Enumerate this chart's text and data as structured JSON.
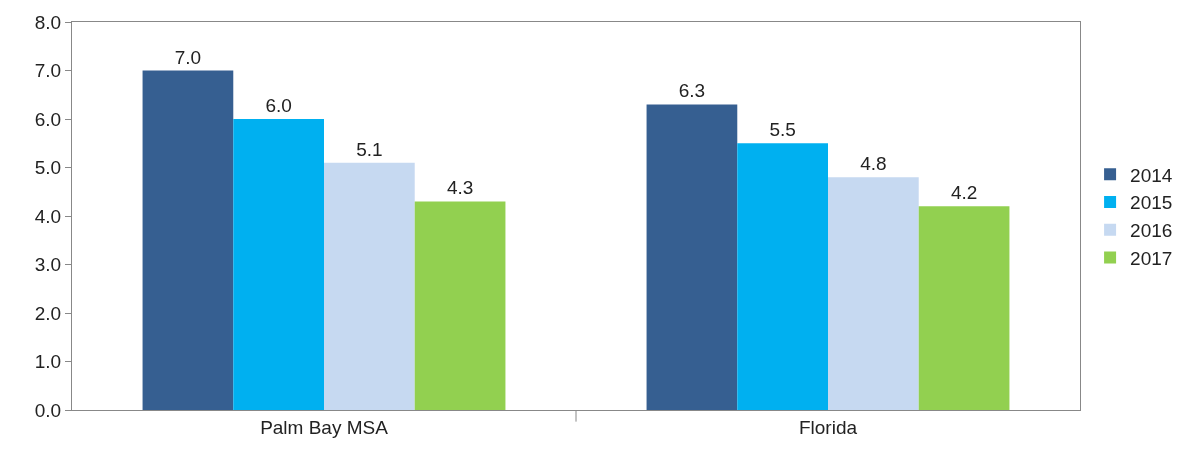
{
  "chart_data": {
    "type": "bar",
    "categories": [
      "Palm Bay MSA",
      "Florida"
    ],
    "series": [
      {
        "name": "2014",
        "color": "#365f91",
        "values": [
          7.0,
          6.3
        ],
        "value_labels": [
          "7.0",
          "6.3"
        ]
      },
      {
        "name": "2015",
        "color": "#00b0f0",
        "values": [
          6.0,
          5.5
        ],
        "value_labels": [
          "6.0",
          "5.5"
        ]
      },
      {
        "name": "2016",
        "color": "#c6d9f1",
        "values": [
          5.1,
          4.8
        ],
        "value_labels": [
          "5.1",
          "4.8"
        ]
      },
      {
        "name": "2017",
        "color": "#92d050",
        "values": [
          4.3,
          4.2
        ],
        "value_labels": [
          "4.3",
          "4.2"
        ]
      }
    ],
    "ylim": [
      0,
      8
    ],
    "yticks": [
      {
        "value": 0,
        "label": "0.0"
      },
      {
        "value": 1,
        "label": "1.0"
      },
      {
        "value": 2,
        "label": "2.0"
      },
      {
        "value": 3,
        "label": "3.0"
      },
      {
        "value": 4,
        "label": "4.0"
      },
      {
        "value": 5,
        "label": "5.0"
      },
      {
        "value": 6,
        "label": "6.0"
      },
      {
        "value": 7,
        "label": "7.0"
      },
      {
        "value": 8,
        "label": "8.0"
      }
    ],
    "grid": false,
    "legend": "right"
  }
}
